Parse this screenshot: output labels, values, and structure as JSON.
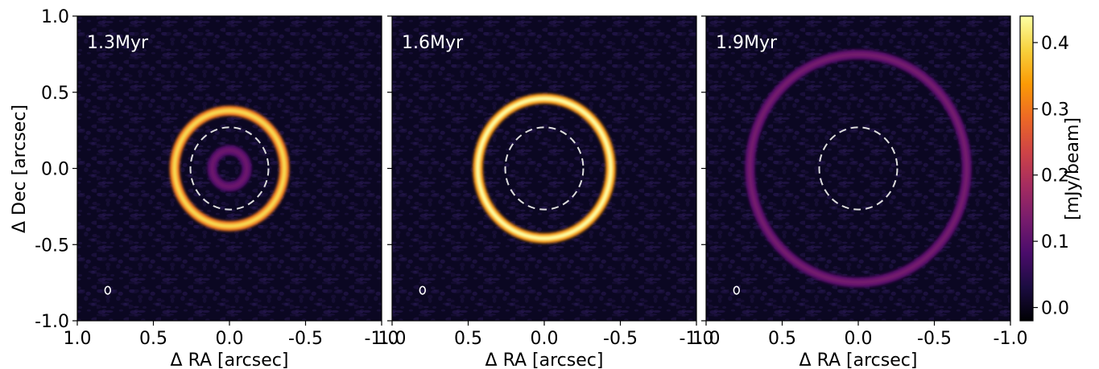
{
  "chart_data": {
    "type": "heatmap",
    "xlabel": "Δ RA [arcsec]",
    "ylabel": "Δ Dec [arcsec]",
    "xlim": [
      1.0,
      -1.0
    ],
    "ylim": [
      -1.0,
      1.0
    ],
    "x_ticks": [
      "1.0",
      "0.5",
      "0.0",
      "-0.5",
      "-1.0"
    ],
    "x_tick_values": [
      1.0,
      0.5,
      0.0,
      -0.5,
      -1.0
    ],
    "y_ticks": [
      "1.0",
      "0.5",
      "0.0",
      "-0.5",
      "-1.0"
    ],
    "y_tick_values": [
      1.0,
      0.5,
      0.0,
      -0.5,
      -1.0
    ],
    "colorbar": {
      "label": "[mJy/beam]",
      "colormap": "inferno",
      "range": [
        -0.02,
        0.44
      ],
      "ticks": [
        "0.0",
        "0.1",
        "0.2",
        "0.3",
        "0.4"
      ],
      "tick_values": [
        0.0,
        0.1,
        0.2,
        0.3,
        0.4
      ]
    },
    "reference_circle": {
      "style": "dashed",
      "color": "#dddddd",
      "rx_arcsec": 0.27,
      "ry_arcsec": 0.27
    },
    "beam": {
      "x_arcsec": 0.8,
      "y_arcsec": -0.8,
      "major_arcsec": 0.025,
      "minor_arcsec": 0.018
    },
    "panels": [
      {
        "label": "1.3Myr",
        "rings": [
          {
            "radius_arcsec": 0.38,
            "peak_mjy_beam": 0.4
          },
          {
            "radius_arcsec": 0.12,
            "peak_mjy_beam": 0.12
          }
        ]
      },
      {
        "label": "1.6Myr",
        "rings": [
          {
            "radius_arcsec": 0.46,
            "peak_mjy_beam": 0.44
          }
        ]
      },
      {
        "label": "1.9Myr",
        "rings": [
          {
            "radius_arcsec": 0.75,
            "peak_mjy_beam": 0.13
          }
        ]
      }
    ]
  },
  "colors": {
    "background": "#0b0722",
    "inferno": [
      "#000004",
      "#1b0c41",
      "#4a0c6b",
      "#781c6d",
      "#a52c60",
      "#cf4446",
      "#ed6925",
      "#fb9b06",
      "#f7d13d",
      "#fcffa4"
    ]
  }
}
